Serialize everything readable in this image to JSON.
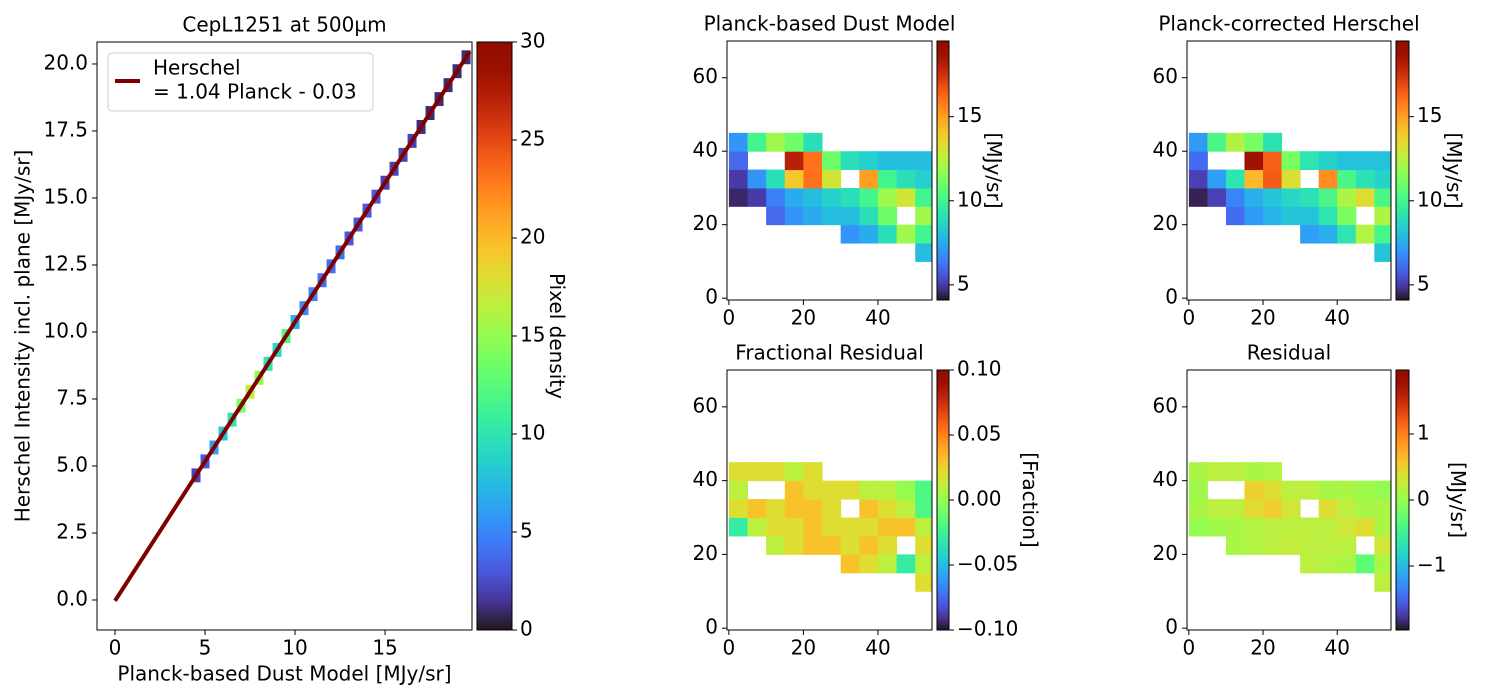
{
  "chart_data": [
    {
      "type": "hist2d",
      "title": "CepL1251 at 500µm",
      "xlabel": "Planck-based Dust Model [MJy/sr]",
      "ylabel": "Herschel Intensity incl. plane [MJy/sr]",
      "x": [
        4.5,
        5,
        5.5,
        6,
        6.5,
        7,
        7.5,
        8,
        8.5,
        9,
        9.5,
        10,
        10.5,
        11,
        11.5,
        12,
        12.5,
        13,
        13.5,
        14,
        14.5,
        15,
        15.5,
        16,
        16.5,
        17,
        17.5,
        18,
        18.5,
        19,
        19.5
      ],
      "y": [
        4.65,
        5.17,
        5.69,
        6.21,
        6.73,
        7.25,
        7.77,
        8.29,
        8.81,
        9.33,
        9.85,
        10.37,
        10.89,
        11.41,
        11.93,
        12.45,
        12.97,
        13.49,
        14.01,
        14.53,
        15.05,
        15.57,
        16.09,
        16.61,
        17.13,
        17.65,
        18.17,
        18.69,
        19.21,
        19.73,
        20.25
      ],
      "values": [
        2,
        3,
        6,
        8,
        10,
        14,
        17,
        15,
        10,
        9,
        12,
        7,
        5,
        5,
        4,
        4,
        4,
        3,
        3,
        3,
        3,
        2,
        2,
        2,
        2,
        1,
        1,
        1,
        1,
        1,
        1
      ],
      "fit": {
        "label": [
          "Herschel",
          "= 1.04 Planck - 0.03"
        ],
        "color": "#7f0000",
        "x": [
          0,
          19.7
        ],
        "y": [
          -0.03,
          20.46
        ]
      },
      "xlim": [
        -1,
        19.83
      ],
      "ylim": [
        -1.12,
        20.82
      ],
      "xticks": [
        0,
        5,
        10,
        15
      ],
      "yticks": [
        {
          "value": 0,
          "label": "0.0"
        },
        2.5,
        {
          "value": 5,
          "label": "5.0"
        },
        7.5,
        {
          "value": 10,
          "label": "10.0"
        },
        12.5,
        {
          "value": 15,
          "label": "15.0"
        },
        17.5,
        {
          "value": 20,
          "label": "20.0"
        }
      ],
      "clim": [
        0,
        30
      ],
      "cticks": [
        0,
        5,
        10,
        15,
        20,
        25,
        30
      ],
      "colorbar_label": "Pixel density",
      "colormap": "turbo"
    },
    {
      "type": "heatmap",
      "title": "Planck-based Dust Model",
      "x": [
        2.5,
        7.5,
        12.5,
        17.5,
        22.5,
        27.5,
        32.5,
        37.5,
        42.5,
        47.5,
        52.5
      ],
      "y": [
        2.5,
        7.5,
        12.5,
        17.5,
        22.5,
        27.5,
        32.5,
        37.5,
        42.5,
        47.5,
        52.5,
        57.5,
        62.5,
        67.5
      ],
      "z": [
        [
          null,
          null,
          null,
          null,
          null,
          null,
          null,
          null,
          null,
          null,
          null
        ],
        [
          null,
          null,
          null,
          null,
          null,
          null,
          null,
          null,
          null,
          null,
          null
        ],
        [
          null,
          null,
          null,
          null,
          null,
          null,
          null,
          null,
          null,
          null,
          8
        ],
        [
          null,
          null,
          null,
          null,
          null,
          null,
          7,
          7.5,
          9,
          12,
          10
        ],
        [
          null,
          null,
          6,
          7,
          7.5,
          8,
          8,
          9,
          11,
          null,
          12
        ],
        [
          4.5,
          5,
          6.5,
          7.5,
          8,
          8.5,
          9,
          10,
          12,
          13,
          10
        ],
        [
          5,
          7,
          9,
          14,
          16,
          13,
          null,
          15,
          10,
          9,
          8.5
        ],
        [
          6,
          null,
          null,
          18,
          16,
          11,
          9,
          8.5,
          8,
          8,
          8
        ],
        [
          7,
          10,
          12,
          11,
          9,
          null,
          null,
          null,
          null,
          null,
          null
        ],
        [
          null,
          null,
          null,
          null,
          null,
          null,
          null,
          null,
          null,
          null,
          null
        ],
        [
          null,
          null,
          null,
          null,
          null,
          null,
          null,
          null,
          null,
          null,
          null
        ],
        [
          null,
          null,
          null,
          null,
          null,
          null,
          null,
          null,
          null,
          null,
          null
        ],
        [
          null,
          null,
          null,
          null,
          null,
          null,
          null,
          null,
          null,
          null,
          null
        ],
        [
          null,
          null,
          null,
          null,
          null,
          null,
          null,
          null,
          null,
          null,
          null
        ]
      ],
      "xlim": [
        -0.5,
        54.5
      ],
      "ylim": [
        -0.5,
        70
      ],
      "xticks": [
        0,
        20,
        40
      ],
      "yticks": [
        0,
        20,
        40,
        60
      ],
      "clim": [
        4.1,
        19.5
      ],
      "cticks": [
        5,
        10,
        15
      ],
      "colorbar_label": "[MJy/sr]",
      "colormap": "turbo"
    },
    {
      "type": "heatmap",
      "title": "Planck-corrected Herschel",
      "x": [
        2.5,
        7.5,
        12.5,
        17.5,
        22.5,
        27.5,
        32.5,
        37.5,
        42.5,
        47.5,
        52.5
      ],
      "y": [
        2.5,
        7.5,
        12.5,
        17.5,
        22.5,
        27.5,
        32.5,
        37.5,
        42.5,
        47.5,
        52.5,
        57.5,
        62.5,
        67.5
      ],
      "z": [
        [
          null,
          null,
          null,
          null,
          null,
          null,
          null,
          null,
          null,
          null,
          null
        ],
        [
          null,
          null,
          null,
          null,
          null,
          null,
          null,
          null,
          null,
          null,
          null
        ],
        [
          null,
          null,
          null,
          null,
          null,
          null,
          null,
          null,
          null,
          null,
          8.2
        ],
        [
          null,
          null,
          null,
          null,
          null,
          null,
          7.2,
          7.6,
          9.2,
          12.4,
          10.1
        ],
        [
          null,
          null,
          6.1,
          7.1,
          7.7,
          8.2,
          8.1,
          9.2,
          11.3,
          null,
          12.3
        ],
        [
          4.4,
          5.1,
          6.6,
          7.6,
          8.2,
          8.7,
          9.1,
          10.2,
          12.3,
          13.4,
          10.2
        ],
        [
          5.1,
          7.2,
          9.2,
          14.4,
          16.5,
          13.3,
          null,
          15.4,
          10.2,
          9.1,
          8.6
        ],
        [
          6.1,
          null,
          null,
          18.6,
          16.4,
          11.2,
          9.2,
          8.6,
          8.1,
          8.1,
          8.1
        ],
        [
          7.1,
          10.2,
          12.3,
          11.2,
          9.1,
          null,
          null,
          null,
          null,
          null,
          null
        ],
        [
          null,
          null,
          null,
          null,
          null,
          null,
          null,
          null,
          null,
          null,
          null
        ],
        [
          null,
          null,
          null,
          null,
          null,
          null,
          null,
          null,
          null,
          null,
          null
        ],
        [
          null,
          null,
          null,
          null,
          null,
          null,
          null,
          null,
          null,
          null,
          null
        ],
        [
          null,
          null,
          null,
          null,
          null,
          null,
          null,
          null,
          null,
          null,
          null
        ],
        [
          null,
          null,
          null,
          null,
          null,
          null,
          null,
          null,
          null,
          null,
          null
        ]
      ],
      "xlim": [
        -0.5,
        54.5
      ],
      "ylim": [
        -0.5,
        70
      ],
      "xticks": [
        0,
        20,
        40
      ],
      "yticks": [
        0,
        20,
        40,
        60
      ],
      "clim": [
        4.1,
        19.5
      ],
      "cticks": [
        5,
        10,
        15
      ],
      "colorbar_label": "[MJy/sr]",
      "colormap": "turbo"
    },
    {
      "type": "heatmap",
      "title": "Fractional Residual",
      "x": [
        2.5,
        7.5,
        12.5,
        17.5,
        22.5,
        27.5,
        32.5,
        37.5,
        42.5,
        47.5,
        52.5
      ],
      "y": [
        2.5,
        7.5,
        12.5,
        17.5,
        22.5,
        27.5,
        32.5,
        37.5,
        42.5,
        47.5,
        52.5,
        57.5,
        62.5,
        67.5
      ],
      "z": [
        [
          null,
          null,
          null,
          null,
          null,
          null,
          null,
          null,
          null,
          null,
          null
        ],
        [
          null,
          null,
          null,
          null,
          null,
          null,
          null,
          null,
          null,
          null,
          null
        ],
        [
          null,
          null,
          null,
          null,
          null,
          null,
          null,
          null,
          null,
          null,
          0.02
        ],
        [
          null,
          null,
          null,
          null,
          null,
          null,
          0.03,
          0.02,
          0.01,
          -0.03,
          0.01
        ],
        [
          null,
          null,
          0.01,
          0.02,
          0.03,
          0.03,
          0.02,
          0.03,
          0.02,
          null,
          0.02
        ],
        [
          -0.03,
          0.01,
          0.02,
          0.02,
          0.03,
          0.02,
          0.02,
          0.02,
          0.03,
          0.03,
          0.01
        ],
        [
          0.02,
          0.03,
          0.02,
          0.03,
          0.03,
          0.02,
          null,
          0.03,
          0.02,
          0.01,
          -0.02
        ],
        [
          0.01,
          null,
          null,
          0.03,
          0.02,
          0.02,
          0.02,
          0.01,
          0.01,
          0.0,
          -0.02
        ],
        [
          0.02,
          0.02,
          0.02,
          0.01,
          0.02,
          null,
          null,
          null,
          null,
          null,
          null
        ],
        [
          null,
          null,
          null,
          null,
          null,
          null,
          null,
          null,
          null,
          null,
          null
        ],
        [
          null,
          null,
          null,
          null,
          null,
          null,
          null,
          null,
          null,
          null,
          null
        ],
        [
          null,
          null,
          null,
          null,
          null,
          null,
          null,
          null,
          null,
          null,
          null
        ],
        [
          null,
          null,
          null,
          null,
          null,
          null,
          null,
          null,
          null,
          null,
          null
        ],
        [
          null,
          null,
          null,
          null,
          null,
          null,
          null,
          null,
          null,
          null,
          null
        ]
      ],
      "xlim": [
        -0.5,
        54.5
      ],
      "ylim": [
        -0.5,
        70
      ],
      "xticks": [
        0,
        20,
        40
      ],
      "yticks": [
        0,
        20,
        40,
        60
      ],
      "clim": [
        -0.1,
        0.1
      ],
      "cticks": [
        {
          "value": -0.1,
          "label": "−0.10"
        },
        {
          "value": -0.05,
          "label": "−0.05"
        },
        {
          "value": 0,
          "label": "0.00"
        },
        0.05,
        {
          "value": 0.1,
          "label": "0.10"
        }
      ],
      "colorbar_label": "[Fraction]",
      "colormap": "turbo"
    },
    {
      "type": "heatmap",
      "title": "Residual",
      "x": [
        2.5,
        7.5,
        12.5,
        17.5,
        22.5,
        27.5,
        32.5,
        37.5,
        42.5,
        47.5,
        52.5
      ],
      "y": [
        2.5,
        7.5,
        12.5,
        17.5,
        22.5,
        27.5,
        32.5,
        37.5,
        42.5,
        47.5,
        52.5,
        57.5,
        62.5,
        67.5
      ],
      "z": [
        [
          null,
          null,
          null,
          null,
          null,
          null,
          null,
          null,
          null,
          null,
          null
        ],
        [
          null,
          null,
          null,
          null,
          null,
          null,
          null,
          null,
          null,
          null,
          null
        ],
        [
          null,
          null,
          null,
          null,
          null,
          null,
          null,
          null,
          null,
          null,
          0.2
        ],
        [
          null,
          null,
          null,
          null,
          null,
          null,
          0.2,
          0.15,
          0.1,
          -0.3,
          0.1
        ],
        [
          null,
          null,
          0.1,
          0.15,
          0.2,
          0.25,
          0.2,
          0.2,
          0.2,
          null,
          0.3
        ],
        [
          0.0,
          0.05,
          0.1,
          0.15,
          0.2,
          0.2,
          0.2,
          0.2,
          0.3,
          0.4,
          0.1
        ],
        [
          0.1,
          0.2,
          0.2,
          0.4,
          0.5,
          0.3,
          null,
          0.4,
          0.2,
          0.1,
          0.1
        ],
        [
          0.05,
          null,
          null,
          0.5,
          0.4,
          0.2,
          0.2,
          0.1,
          0.1,
          0.05,
          0.0
        ],
        [
          0.1,
          0.2,
          0.2,
          0.1,
          0.15,
          null,
          null,
          null,
          null,
          null,
          null
        ],
        [
          null,
          null,
          null,
          null,
          null,
          null,
          null,
          null,
          null,
          null,
          null
        ],
        [
          null,
          null,
          null,
          null,
          null,
          null,
          null,
          null,
          null,
          null,
          null
        ],
        [
          null,
          null,
          null,
          null,
          null,
          null,
          null,
          null,
          null,
          null,
          null
        ],
        [
          null,
          null,
          null,
          null,
          null,
          null,
          null,
          null,
          null,
          null,
          null
        ],
        [
          null,
          null,
          null,
          null,
          null,
          null,
          null,
          null,
          null,
          null,
          null
        ]
      ],
      "xlim": [
        -0.5,
        54.5
      ],
      "ylim": [
        -0.5,
        70
      ],
      "xticks": [
        0,
        20,
        40
      ],
      "yticks": [
        0,
        20,
        40,
        60
      ],
      "clim": [
        -1.97,
        1.97
      ],
      "cticks": [
        {
          "value": -1,
          "label": "−1"
        },
        0,
        1
      ],
      "colorbar_label": "[MJy/sr]",
      "colormap": "turbo"
    }
  ]
}
